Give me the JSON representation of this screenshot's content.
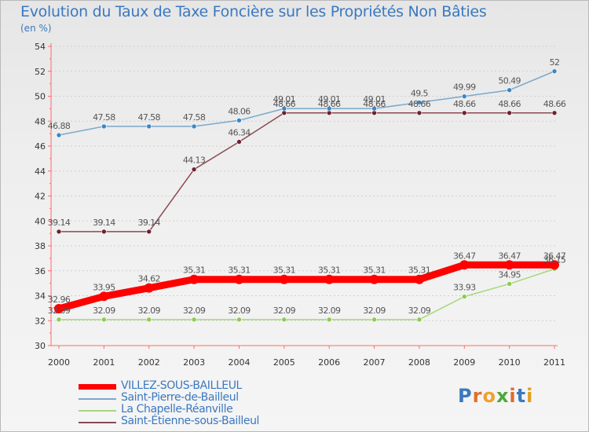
{
  "title": "Evolution du Taux de Taxe Foncière sur les Propriétés Non Bâties",
  "unit_label": "(en %)",
  "logo": {
    "text": "Proxiti",
    "letter_colors": [
      "#3a78c0",
      "#e0702a",
      "#f0a030",
      "#4aa83a",
      "#e06a2a",
      "#3a78c0",
      "#e0a020"
    ]
  },
  "chart_data": {
    "type": "line",
    "title": "Evolution du Taux de Taxe Foncière sur les Propriétés Non Bâties",
    "ylabel": "(en %)",
    "xlabel": "",
    "ylim": [
      30,
      54
    ],
    "yticks": [
      "30",
      "32",
      "34",
      "36",
      "38",
      "40",
      "42",
      "44",
      "46",
      "48",
      "50",
      "52",
      "54"
    ],
    "ytick_values": [
      30,
      32,
      34,
      36,
      38,
      40,
      42,
      44,
      46,
      48,
      50,
      52,
      54
    ],
    "categories": [
      "2000",
      "2001",
      "2002",
      "2003",
      "2004",
      "2005",
      "2006",
      "2007",
      "2008",
      "2009",
      "2010",
      "2011"
    ],
    "series": [
      {
        "name": "VILLEZ-SOUS-BAILLEUL",
        "color": "#ff0000",
        "point_color": "#ff0000",
        "emphasis": "thick",
        "values": [
          32.96,
          33.95,
          34.62,
          35.31,
          35.31,
          35.31,
          35.31,
          35.31,
          35.31,
          36.47,
          36.47,
          36.47
        ],
        "labels": [
          "32.96",
          "33.95",
          "34.62",
          "35.31",
          "35.31",
          "35.31",
          "35.31",
          "35.31",
          "35.31",
          "36.47",
          "36.47",
          "36.47"
        ]
      },
      {
        "name": "Saint-Pierre-de-Bailleul",
        "color": "#7aa8cc",
        "point_color": "#3b86c4",
        "emphasis": "thin",
        "values": [
          46.88,
          47.58,
          47.58,
          47.58,
          48.06,
          49.01,
          49.01,
          49.01,
          49.5,
          49.99,
          50.49,
          52
        ],
        "labels": [
          "46.88",
          "47.58",
          "47.58",
          "47.58",
          "48.06",
          "49.01",
          "49.01",
          "49.01",
          "49.5",
          "49.99",
          "50.49",
          "52"
        ]
      },
      {
        "name": "La Chapelle-Réanville",
        "color": "#a6d87a",
        "point_color": "#8ccc4c",
        "emphasis": "thin",
        "values": [
          32.09,
          32.09,
          32.09,
          32.09,
          32.09,
          32.09,
          32.09,
          32.09,
          32.09,
          33.93,
          34.95,
          36.15
        ],
        "labels": [
          "32.09",
          "32.09",
          "32.09",
          "32.09",
          "32.09",
          "32.09",
          "32.09",
          "32.09",
          "32.09",
          "33.93",
          "34.95",
          "36.15"
        ]
      },
      {
        "name": "Saint-Étienne-sous-Bailleul",
        "color": "#8a4a52",
        "point_color": "#6e2030",
        "emphasis": "thin",
        "values": [
          39.14,
          39.14,
          39.14,
          44.13,
          46.34,
          48.66,
          48.66,
          48.66,
          48.66,
          48.66,
          48.66,
          48.66
        ],
        "labels": [
          "39.14",
          "39.14",
          "39.14",
          "44.13",
          "46.34",
          "48.66",
          "48.66",
          "48.66",
          "48.66",
          "48.66",
          "48.66",
          "48.66"
        ]
      }
    ]
  }
}
